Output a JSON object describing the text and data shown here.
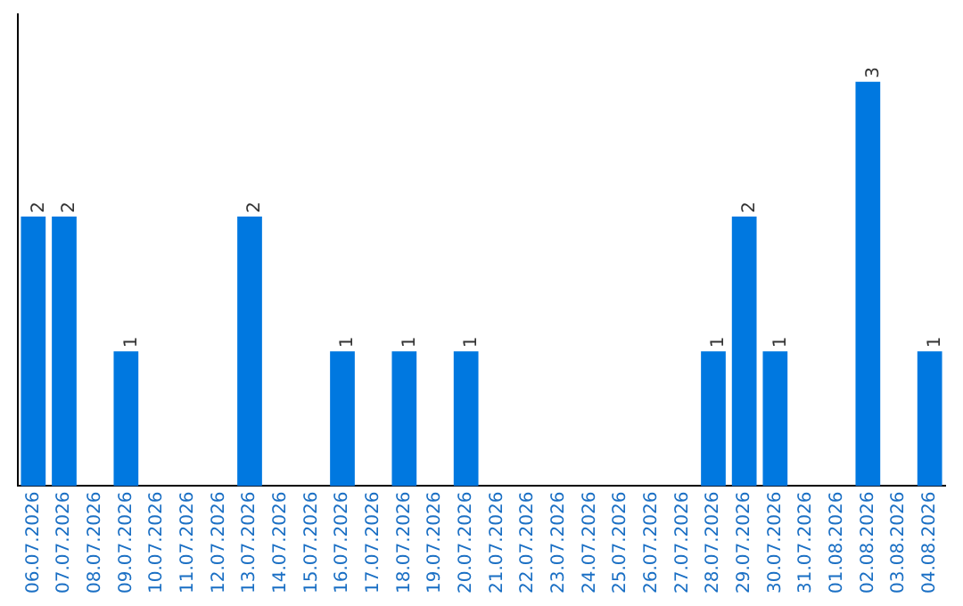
{
  "chart_data": {
    "type": "bar",
    "categories": [
      "06.07.2026",
      "07.07.2026",
      "08.07.2026",
      "09.07.2026",
      "10.07.2026",
      "11.07.2026",
      "12.07.2026",
      "13.07.2026",
      "14.07.2026",
      "15.07.2026",
      "16.07.2026",
      "17.07.2026",
      "18.07.2026",
      "19.07.2026",
      "20.07.2026",
      "21.07.2026",
      "22.07.2026",
      "23.07.2026",
      "24.07.2026",
      "25.07.2026",
      "26.07.2026",
      "27.07.2026",
      "28.07.2026",
      "29.07.2026",
      "30.07.2026",
      "31.07.2026",
      "01.08.2026",
      "02.08.2026",
      "03.08.2026",
      "04.08.2026"
    ],
    "values": [
      2,
      2,
      0,
      1,
      0,
      0,
      0,
      2,
      0,
      0,
      1,
      0,
      1,
      0,
      1,
      0,
      0,
      0,
      0,
      0,
      0,
      0,
      1,
      2,
      1,
      0,
      0,
      3,
      0,
      1
    ],
    "value_labels": [
      "2",
      "2",
      null,
      "1",
      null,
      null,
      null,
      "2",
      null,
      null,
      "1",
      null,
      "1",
      null,
      "1",
      null,
      null,
      null,
      null,
      null,
      null,
      null,
      "1",
      "2",
      "1",
      null,
      null,
      "3",
      null,
      "1"
    ],
    "color": "#0078e0",
    "tick_labels": "x",
    "grid": false,
    "legend": false
  }
}
